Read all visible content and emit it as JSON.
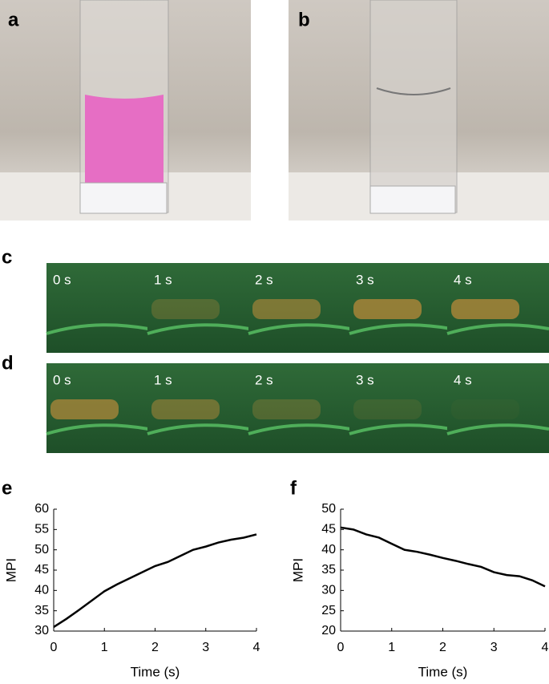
{
  "panel_labels": [
    "a",
    "b",
    "c",
    "d",
    "e",
    "f"
  ],
  "frames": {
    "c": [
      "0 s",
      "1 s",
      "2 s",
      "3 s",
      "4 s"
    ],
    "d": [
      "0 s",
      "1 s",
      "2 s",
      "3 s",
      "4 s"
    ]
  },
  "chart_data": [
    {
      "type": "line",
      "xlabel": "Time (s)",
      "ylabel": "MPI",
      "color": "#000000",
      "x": [
        0,
        0.25,
        0.5,
        0.75,
        1,
        1.25,
        1.5,
        1.75,
        2,
        2.25,
        2.5,
        2.75,
        3,
        3.25,
        3.5,
        3.75,
        4
      ],
      "values": [
        31,
        33,
        35.2,
        37.5,
        39.8,
        41.5,
        43,
        44.5,
        46,
        47,
        48.5,
        50,
        50.8,
        51.8,
        52.5,
        53,
        53.8
      ],
      "xlim": [
        0,
        4
      ],
      "xticks": [
        0,
        1,
        2,
        3,
        4
      ],
      "ylim": [
        30,
        60
      ],
      "yticks": [
        30,
        35,
        40,
        45,
        50,
        55,
        60
      ]
    },
    {
      "type": "line",
      "xlabel": "Time (s)",
      "ylabel": "MPI",
      "color": "#000000",
      "x": [
        0,
        0.25,
        0.5,
        0.75,
        1,
        1.25,
        1.5,
        1.75,
        2,
        2.25,
        2.5,
        2.75,
        3,
        3.25,
        3.5,
        3.75,
        4
      ],
      "values": [
        45.5,
        45,
        43.8,
        43,
        41.5,
        40,
        39.5,
        38.8,
        38,
        37.3,
        36.5,
        35.8,
        34.5,
        33.8,
        33.5,
        32.5,
        31
      ],
      "xlim": [
        0,
        4
      ],
      "xticks": [
        0,
        1,
        2,
        3,
        4
      ],
      "ylim": [
        20,
        50
      ],
      "yticks": [
        20,
        25,
        30,
        35,
        40,
        45,
        50
      ]
    }
  ]
}
